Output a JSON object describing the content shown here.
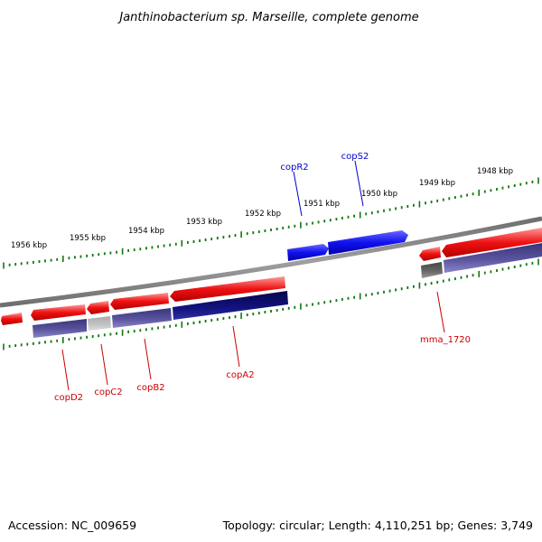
{
  "title": "Janthinobacterium sp. Marseille, complete genome",
  "ruler_labels": [
    {
      "text": "1956 kbp"
    },
    {
      "text": "1955 kbp"
    },
    {
      "text": "1954 kbp"
    },
    {
      "text": "1953 kbp"
    },
    {
      "text": "1952 kbp"
    },
    {
      "text": "1951 kbp"
    },
    {
      "text": "1950 kbp"
    },
    {
      "text": "1949 kbp"
    },
    {
      "text": "1948 kbp"
    }
  ],
  "gene_labels": [
    {
      "name": "copR2",
      "color": "#0000cc"
    },
    {
      "name": "copS2",
      "color": "#0000cc"
    },
    {
      "name": "copD2",
      "color": "#cc0000"
    },
    {
      "name": "copC2",
      "color": "#cc0000"
    },
    {
      "name": "copB2",
      "color": "#cc0000"
    },
    {
      "name": "copA2",
      "color": "#cc0000"
    },
    {
      "name": "mma_1720",
      "color": "#cc0000"
    }
  ],
  "footer": {
    "accession": "Accession: NC_009659",
    "summary": "Topology: circular; Length: 4,110,251 bp; Genes: 3,749"
  },
  "colors": {
    "forward_gene": "#ee1111",
    "reverse_gene": "#1111ee",
    "backbone": "#888888",
    "tick": "#117711",
    "cog_blue": "#4a4488",
    "cog_navy": "#101070",
    "cog_gray": "#999999"
  }
}
